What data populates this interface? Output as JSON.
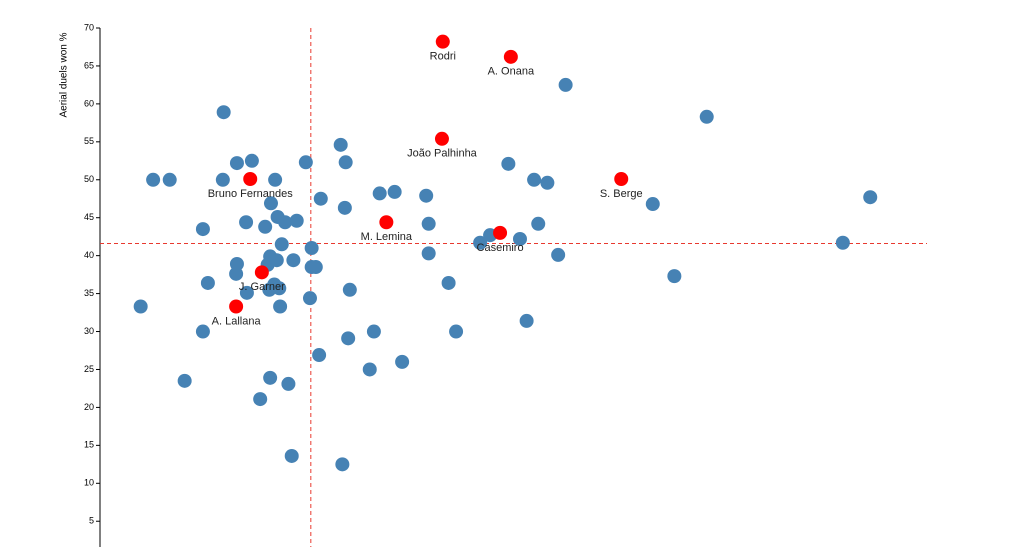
{
  "chart_data": {
    "type": "scatter",
    "y_label": "Aerial duels won %",
    "xlim": [
      0,
      100
    ],
    "ylim": [
      2,
      70
    ],
    "yticks": [
      5,
      10,
      15,
      20,
      25,
      30,
      35,
      40,
      45,
      50,
      55,
      60,
      65,
      70
    ],
    "reference_lines": {
      "x": 25.4,
      "y": 41.6,
      "color": "#e8392f"
    },
    "points": {
      "color": "#4682b4",
      "x": [
        4.9,
        6.4,
        8.4,
        10.2,
        12.4,
        12.4,
        13.0,
        14.9,
        14.8,
        16.5,
        18.3,
        16.5,
        16.4,
        17.6,
        17.7,
        19.3,
        20.5,
        19.9,
        20.6,
        21.1,
        21.4,
        22.3,
        23.7,
        21.9,
        20.5,
        20.2,
        21.3,
        23.3,
        21.0,
        21.6,
        20.4,
        21.7,
        22.7,
        23.1,
        24.8,
        25.5,
        25.5,
        26.0,
        25.3,
        26.6,
        26.4,
        29.0,
        29.6,
        29.5,
        30.1,
        29.9,
        29.2,
        32.5,
        33.0,
        33.7,
        35.5,
        36.4,
        39.3,
        39.6,
        39.6,
        42.0,
        42.9,
        45.8,
        47.0,
        49.2,
        50.6,
        51.4,
        52.3,
        53.9,
        52.8,
        55.2,
        56.1,
        66.6,
        69.2,
        73.1,
        89.5,
        92.8
      ],
      "y": [
        33.3,
        50.0,
        50.0,
        23.5,
        43.5,
        30.0,
        36.4,
        58.9,
        50.0,
        52.2,
        52.5,
        38.9,
        37.6,
        44.4,
        35.1,
        21.1,
        23.9,
        43.8,
        46.9,
        50.0,
        45.1,
        44.4,
        44.6,
        41.5,
        39.9,
        38.8,
        39.4,
        39.4,
        36.2,
        35.7,
        35.5,
        33.3,
        23.1,
        13.6,
        52.3,
        41.0,
        38.5,
        38.5,
        34.4,
        47.5,
        26.9,
        54.6,
        52.3,
        46.3,
        35.5,
        29.1,
        12.5,
        25.0,
        30.0,
        48.2,
        48.4,
        26.0,
        47.9,
        44.2,
        40.3,
        36.4,
        30.0,
        41.7,
        42.7,
        52.1,
        42.2,
        31.4,
        50.0,
        49.6,
        44.2,
        40.1,
        62.5,
        46.8,
        37.3,
        58.3,
        41.7,
        47.7
      ]
    },
    "highlighted": {
      "color": "#ff0000",
      "labels": [
        "Rodri",
        "A. Onana",
        "João Palhinha",
        "S. Berge",
        "Bruno Fernandes",
        "M. Lemina",
        "Casemiro",
        "J. Garner",
        "A. Lallana"
      ],
      "x": [
        41.3,
        49.5,
        41.2,
        62.8,
        18.1,
        34.5,
        48.2,
        19.5,
        16.4
      ],
      "y": [
        68.2,
        66.2,
        55.4,
        50.1,
        50.1,
        44.4,
        43.0,
        37.8,
        33.3
      ]
    }
  }
}
